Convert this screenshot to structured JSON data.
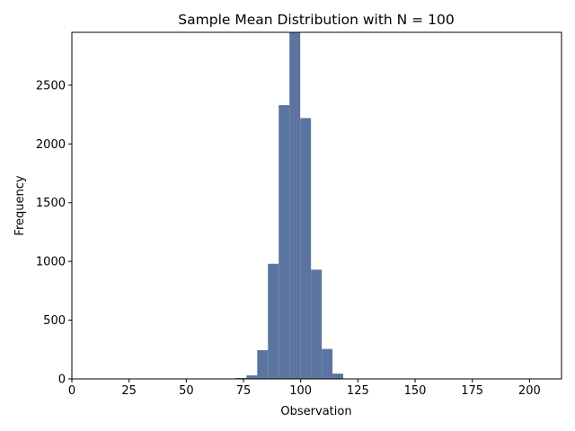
{
  "chart_data": {
    "type": "histogram",
    "title": "Sample Mean Distribution with N = 100",
    "xlabel": "Observation",
    "ylabel": "Frequency",
    "xlim": [
      0,
      214
    ],
    "ylim": [
      0,
      2950
    ],
    "xticks": [
      0,
      25,
      50,
      75,
      100,
      125,
      150,
      175,
      200
    ],
    "yticks": [
      0,
      500,
      1000,
      1500,
      2000,
      2500
    ],
    "bin_edges": [
      71.5,
      76.3,
      81.0,
      85.7,
      90.4,
      95.1,
      99.8,
      104.5,
      109.2,
      113.9,
      118.6
    ],
    "values": [
      8,
      30,
      245,
      980,
      2330,
      2970,
      2220,
      930,
      255,
      45
    ],
    "color": "#5b74a0",
    "grid": false
  }
}
